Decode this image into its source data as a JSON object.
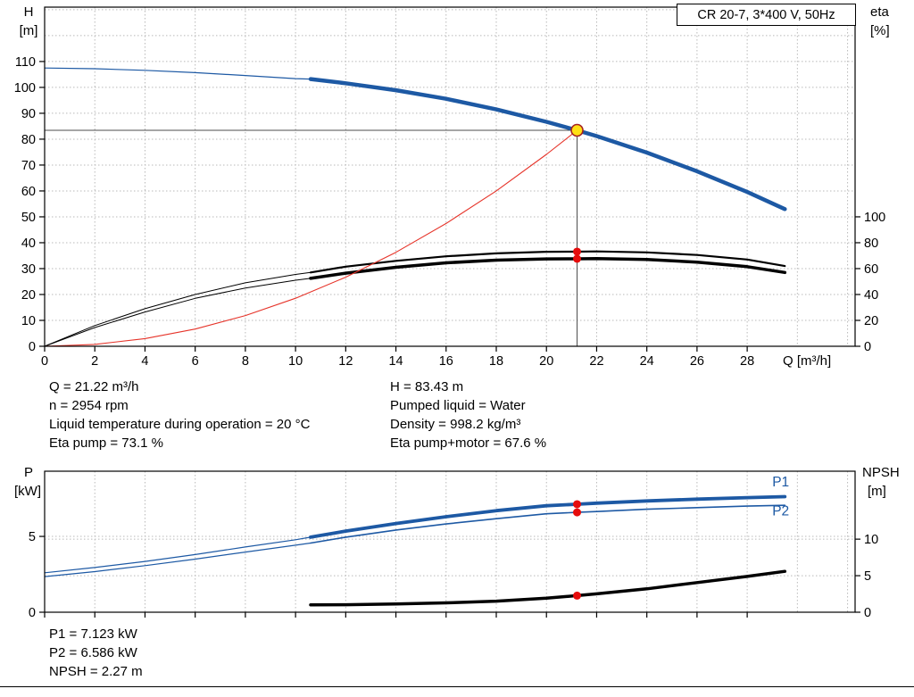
{
  "title_box": {
    "label": "CR 20-7, 3*400 V, 50Hz"
  },
  "colors": {
    "curve_blue": "#1d59a4",
    "curve_red": "#e63329",
    "curve_black": "#000000",
    "grid": "#b9b9b9",
    "crosshair": "#4d4d4d",
    "duty_fill": "#ffe014",
    "duty_stroke": "#a52222",
    "dot_red": "#e60c0c"
  },
  "top_chart": {
    "left_axis": {
      "name": "H",
      "unit": "[m]"
    },
    "right_axis": {
      "name": "eta",
      "unit": "[%]"
    },
    "x_axis_label": "Q [m³/h]"
  },
  "bottom_chart": {
    "left_axis": {
      "name": "P",
      "unit": "[kW]"
    },
    "right_axis": {
      "name": "NPSH",
      "unit": "[m]"
    }
  },
  "info_block": {
    "left": [
      "Q = 21.22 m³/h",
      "n = 2954 rpm",
      "Liquid temperature during operation = 20 °C",
      "Eta pump = 73.1 %"
    ],
    "right": [
      "H = 83.43 m",
      "Pumped liquid = Water",
      "Density = 998.2 kg/m³",
      "Eta pump+motor = 67.6 %"
    ]
  },
  "result_block": [
    "P1 = 7.123 kW",
    "P2 = 6.586 kW",
    "NPSH = 2.27 m"
  ],
  "chart_data": [
    {
      "type": "line",
      "title": "CR 20-7, 3*400 V, 50Hz",
      "xlabel": "Q [m³/h]",
      "x_axis": {
        "range": [
          0,
          32.3
        ],
        "ticks": [
          0,
          2,
          4,
          6,
          8,
          10,
          12,
          14,
          16,
          18,
          20,
          22,
          24,
          26,
          28
        ],
        "grid": [
          2,
          4,
          6,
          8,
          10,
          12,
          14,
          16,
          18,
          20,
          22,
          24,
          26,
          28,
          30,
          32
        ]
      },
      "y_left": {
        "label": "H [m]",
        "range": [
          0,
          131
        ],
        "ticks": [
          0,
          10,
          20,
          30,
          40,
          50,
          60,
          70,
          80,
          90,
          100,
          110
        ],
        "grid": [
          10,
          20,
          30,
          40,
          50,
          60,
          70,
          80,
          90,
          100,
          110,
          120,
          130
        ]
      },
      "y_right": {
        "label": "eta [%]",
        "range": [
          0,
          262
        ],
        "ticks": [
          0,
          20,
          40,
          60,
          80,
          100
        ],
        "grid": []
      },
      "duty_point": {
        "Q": 21.22,
        "H": 83.43,
        "eta_pump": 73.1,
        "eta_pump_motor": 67.6
      },
      "crosshair": {
        "x": 21.22,
        "y": 83.43,
        "axis": "left"
      },
      "series": [
        {
          "name": "head-curve-low-flow",
          "axis": "left",
          "color": "#1d59a4",
          "width": 1.2,
          "points": [
            [
              0,
              107.5
            ],
            [
              2,
              107.2
            ],
            [
              4,
              106.6
            ],
            [
              6,
              105.7
            ],
            [
              8,
              104.6
            ],
            [
              10,
              103.4
            ],
            [
              10.6,
              103.2
            ]
          ]
        },
        {
          "name": "head-curve",
          "axis": "left",
          "color": "#1d59a4",
          "width": 4.5,
          "points": [
            [
              10.6,
              103.2
            ],
            [
              12,
              101.6
            ],
            [
              14,
              98.9
            ],
            [
              16,
              95.6
            ],
            [
              18,
              91.5
            ],
            [
              20,
              86.7
            ],
            [
              21.22,
              83.43
            ],
            [
              22,
              81.2
            ],
            [
              24,
              74.8
            ],
            [
              26,
              67.6
            ],
            [
              28,
              59.6
            ],
            [
              29.5,
              53
            ]
          ]
        },
        {
          "name": "eta-pump-curve-low-flow",
          "axis": "right",
          "color": "#000000",
          "width": 1,
          "points": [
            [
              0,
              0
            ],
            [
              2,
              16
            ],
            [
              4,
              29
            ],
            [
              6,
              40
            ],
            [
              8,
              49
            ],
            [
              10,
              55.5
            ],
            [
              10.6,
              57
            ]
          ]
        },
        {
          "name": "eta-pump-curve",
          "axis": "right",
          "color": "#000000",
          "width": 2.2,
          "points": [
            [
              10.6,
              57
            ],
            [
              12,
              61.5
            ],
            [
              14,
              66
            ],
            [
              16,
              69.5
            ],
            [
              18,
              71.8
            ],
            [
              20,
              73
            ],
            [
              21.22,
              73.1
            ],
            [
              22,
              73.3
            ],
            [
              24,
              72.5
            ],
            [
              26,
              70.5
            ],
            [
              28,
              67
            ],
            [
              29.5,
              62
            ]
          ]
        },
        {
          "name": "eta-pump-motor-curve-low-flow",
          "axis": "right",
          "color": "#000000",
          "width": 1,
          "points": [
            [
              0,
              0
            ],
            [
              2,
              14.5
            ],
            [
              4,
              26.5
            ],
            [
              6,
              37
            ],
            [
              8,
              45
            ],
            [
              10,
              51
            ],
            [
              10.6,
              52.5
            ]
          ]
        },
        {
          "name": "eta-pump-motor-curve",
          "axis": "right",
          "color": "#000000",
          "width": 3.5,
          "points": [
            [
              10.6,
              52.5
            ],
            [
              12,
              56.5
            ],
            [
              14,
              61
            ],
            [
              16,
              64.5
            ],
            [
              18,
              66.5
            ],
            [
              20,
              67.5
            ],
            [
              21.22,
              67.6
            ],
            [
              22,
              67.7
            ],
            [
              24,
              67
            ],
            [
              26,
              65
            ],
            [
              28,
              61.5
            ],
            [
              29.5,
              57
            ]
          ]
        },
        {
          "name": "iso-efficiency-curve",
          "axis": "left",
          "color": "#e63329",
          "width": 1.1,
          "points": [
            [
              0,
              0
            ],
            [
              2,
              0.74
            ],
            [
              4,
              2.96
            ],
            [
              6,
              6.67
            ],
            [
              8,
              11.86
            ],
            [
              10,
              18.53
            ],
            [
              12,
              26.68
            ],
            [
              14,
              36.31
            ],
            [
              16,
              47.43
            ],
            [
              18,
              60.03
            ],
            [
              20,
              74.11
            ],
            [
              21.22,
              83.43
            ]
          ]
        }
      ],
      "markers": [
        {
          "name": "duty-point-marker",
          "x": 21.22,
          "y": 83.43,
          "axis": "left",
          "r": 6.5,
          "fill": "#ffe014",
          "stroke": "#a52222",
          "stroke_width": 1.6
        },
        {
          "name": "eta-pump-dot",
          "x": 21.22,
          "y": 73.1,
          "axis": "right",
          "r": 4.5,
          "fill": "#e60c0c"
        },
        {
          "name": "eta-pump-motor-dot",
          "x": 21.22,
          "y": 67.6,
          "axis": "right",
          "r": 4.5,
          "fill": "#e60c0c"
        }
      ],
      "labels": []
    },
    {
      "type": "line",
      "xlabel": "Q [m³/h]",
      "x_axis": {
        "range": [
          0,
          32.3
        ],
        "ticks": [
          0,
          2,
          4,
          6,
          8,
          10,
          12,
          14,
          16,
          18,
          20,
          22,
          24,
          26,
          28
        ],
        "grid": [
          2,
          4,
          6,
          8,
          10,
          12,
          14,
          16,
          18,
          20,
          22,
          24,
          26,
          28,
          30,
          32
        ]
      },
      "y_left": {
        "label": "P [kW]",
        "range": [
          0,
          9.3
        ],
        "ticks": [
          0,
          5
        ],
        "grid": [
          5
        ]
      },
      "y_right": {
        "label": "NPSH [m]",
        "range": [
          0,
          19.3
        ],
        "ticks": [
          0,
          5,
          10
        ],
        "grid": [
          5,
          10
        ]
      },
      "duty_point": {
        "Q": 21.22,
        "P1": 7.123,
        "P2": 6.586,
        "NPSH": 2.27
      },
      "series": [
        {
          "name": "p1-curve-low-flow",
          "axis": "left",
          "color": "#1d59a4",
          "width": 1.2,
          "points": [
            [
              0,
              2.6
            ],
            [
              2,
              2.95
            ],
            [
              4,
              3.35
            ],
            [
              6,
              3.8
            ],
            [
              8,
              4.3
            ],
            [
              10,
              4.78
            ],
            [
              10.6,
              4.95
            ]
          ]
        },
        {
          "name": "p1-curve",
          "axis": "left",
          "color": "#1d59a4",
          "width": 3.8,
          "points": [
            [
              10.6,
              4.95
            ],
            [
              12,
              5.35
            ],
            [
              14,
              5.85
            ],
            [
              16,
              6.3
            ],
            [
              18,
              6.7
            ],
            [
              20,
              7.02
            ],
            [
              21.22,
              7.123
            ],
            [
              22,
              7.19
            ],
            [
              24,
              7.34
            ],
            [
              26,
              7.46
            ],
            [
              28,
              7.56
            ],
            [
              29.5,
              7.62
            ]
          ]
        },
        {
          "name": "p2-curve-low-flow",
          "axis": "left",
          "color": "#1d59a4",
          "width": 1.2,
          "points": [
            [
              0,
              2.35
            ],
            [
              2,
              2.68
            ],
            [
              4,
              3.07
            ],
            [
              6,
              3.5
            ],
            [
              8,
              3.97
            ],
            [
              10,
              4.42
            ],
            [
              10.6,
              4.56
            ]
          ]
        },
        {
          "name": "p2-curve",
          "axis": "left",
          "color": "#1d59a4",
          "width": 1.6,
          "points": [
            [
              10.6,
              4.56
            ],
            [
              12,
              4.95
            ],
            [
              14,
              5.42
            ],
            [
              16,
              5.82
            ],
            [
              18,
              6.17
            ],
            [
              20,
              6.49
            ],
            [
              21.22,
              6.586
            ],
            [
              22,
              6.64
            ],
            [
              24,
              6.79
            ],
            [
              26,
              6.9
            ],
            [
              28,
              7.0
            ],
            [
              29.5,
              7.05
            ]
          ]
        },
        {
          "name": "npsh-curve",
          "axis": "right",
          "color": "#000000",
          "width": 3.5,
          "points": [
            [
              10.6,
              1.0
            ],
            [
              12,
              1.03
            ],
            [
              14,
              1.12
            ],
            [
              16,
              1.28
            ],
            [
              18,
              1.52
            ],
            [
              20,
              1.92
            ],
            [
              21.22,
              2.27
            ],
            [
              22,
              2.52
            ],
            [
              24,
              3.2
            ],
            [
              26,
              4.05
            ],
            [
              28,
              4.9
            ],
            [
              29.5,
              5.6
            ]
          ]
        }
      ],
      "markers": [
        {
          "name": "p1-dot",
          "x": 21.22,
          "y": 7.123,
          "axis": "left",
          "r": 4.5,
          "fill": "#e60c0c"
        },
        {
          "name": "p2-dot",
          "x": 21.22,
          "y": 6.586,
          "axis": "left",
          "r": 4.5,
          "fill": "#e60c0c"
        },
        {
          "name": "npsh-dot",
          "x": 21.22,
          "y": 2.27,
          "axis": "right",
          "r": 4.5,
          "fill": "#e60c0c"
        }
      ],
      "labels": [
        {
          "name": "p1-curve-label",
          "text": "P1",
          "x": 29.0,
          "y": 8.3,
          "axis": "left",
          "color": "#1d59a4"
        },
        {
          "name": "p2-curve-label",
          "text": "P2",
          "x": 29.0,
          "y": 6.4,
          "axis": "left",
          "color": "#1d59a4"
        }
      ]
    }
  ]
}
